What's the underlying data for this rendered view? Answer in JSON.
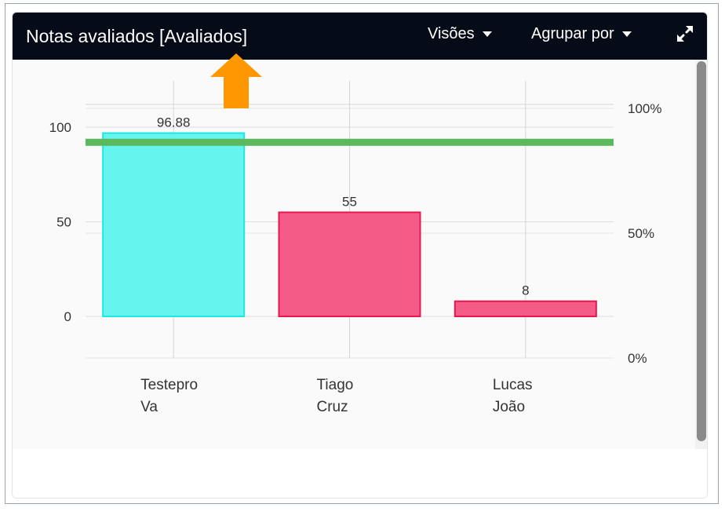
{
  "header": {
    "title": "Notas avaliados [Avaliados]",
    "menus": [
      {
        "label": "Visões"
      },
      {
        "label": "Agrupar por"
      }
    ],
    "expand_icon": "expand-arrows-icon"
  },
  "annotation": {
    "icon": "arrow-up-icon",
    "color": "#ff9800"
  },
  "chart_data": {
    "type": "bar",
    "title": "",
    "xlabel": "",
    "ylabel": "",
    "categories": [
      [
        "Testepro",
        "Va"
      ],
      [
        "Tiago",
        "Cruz"
      ],
      [
        "Lucas",
        "João"
      ]
    ],
    "values": [
      96.88,
      55,
      8
    ],
    "data_labels": [
      "96.88",
      "55",
      "8"
    ],
    "bar_colors": [
      "#66f5ee",
      "#f45c87",
      "#f45c87"
    ],
    "bar_border_colors": [
      "#1ce8e0",
      "#e8174f",
      "#e8174f"
    ],
    "ylim": [
      0,
      100
    ],
    "y_ticks": [
      "0",
      "50",
      "100"
    ],
    "y_tick_values": [
      0,
      50,
      100
    ],
    "y2_ticks": [
      "0%",
      "50%",
      "100%"
    ],
    "y2_tick_values": [
      0,
      50,
      100
    ],
    "target_line": {
      "value": 92,
      "color": "#5cb85c"
    },
    "grid": true
  }
}
